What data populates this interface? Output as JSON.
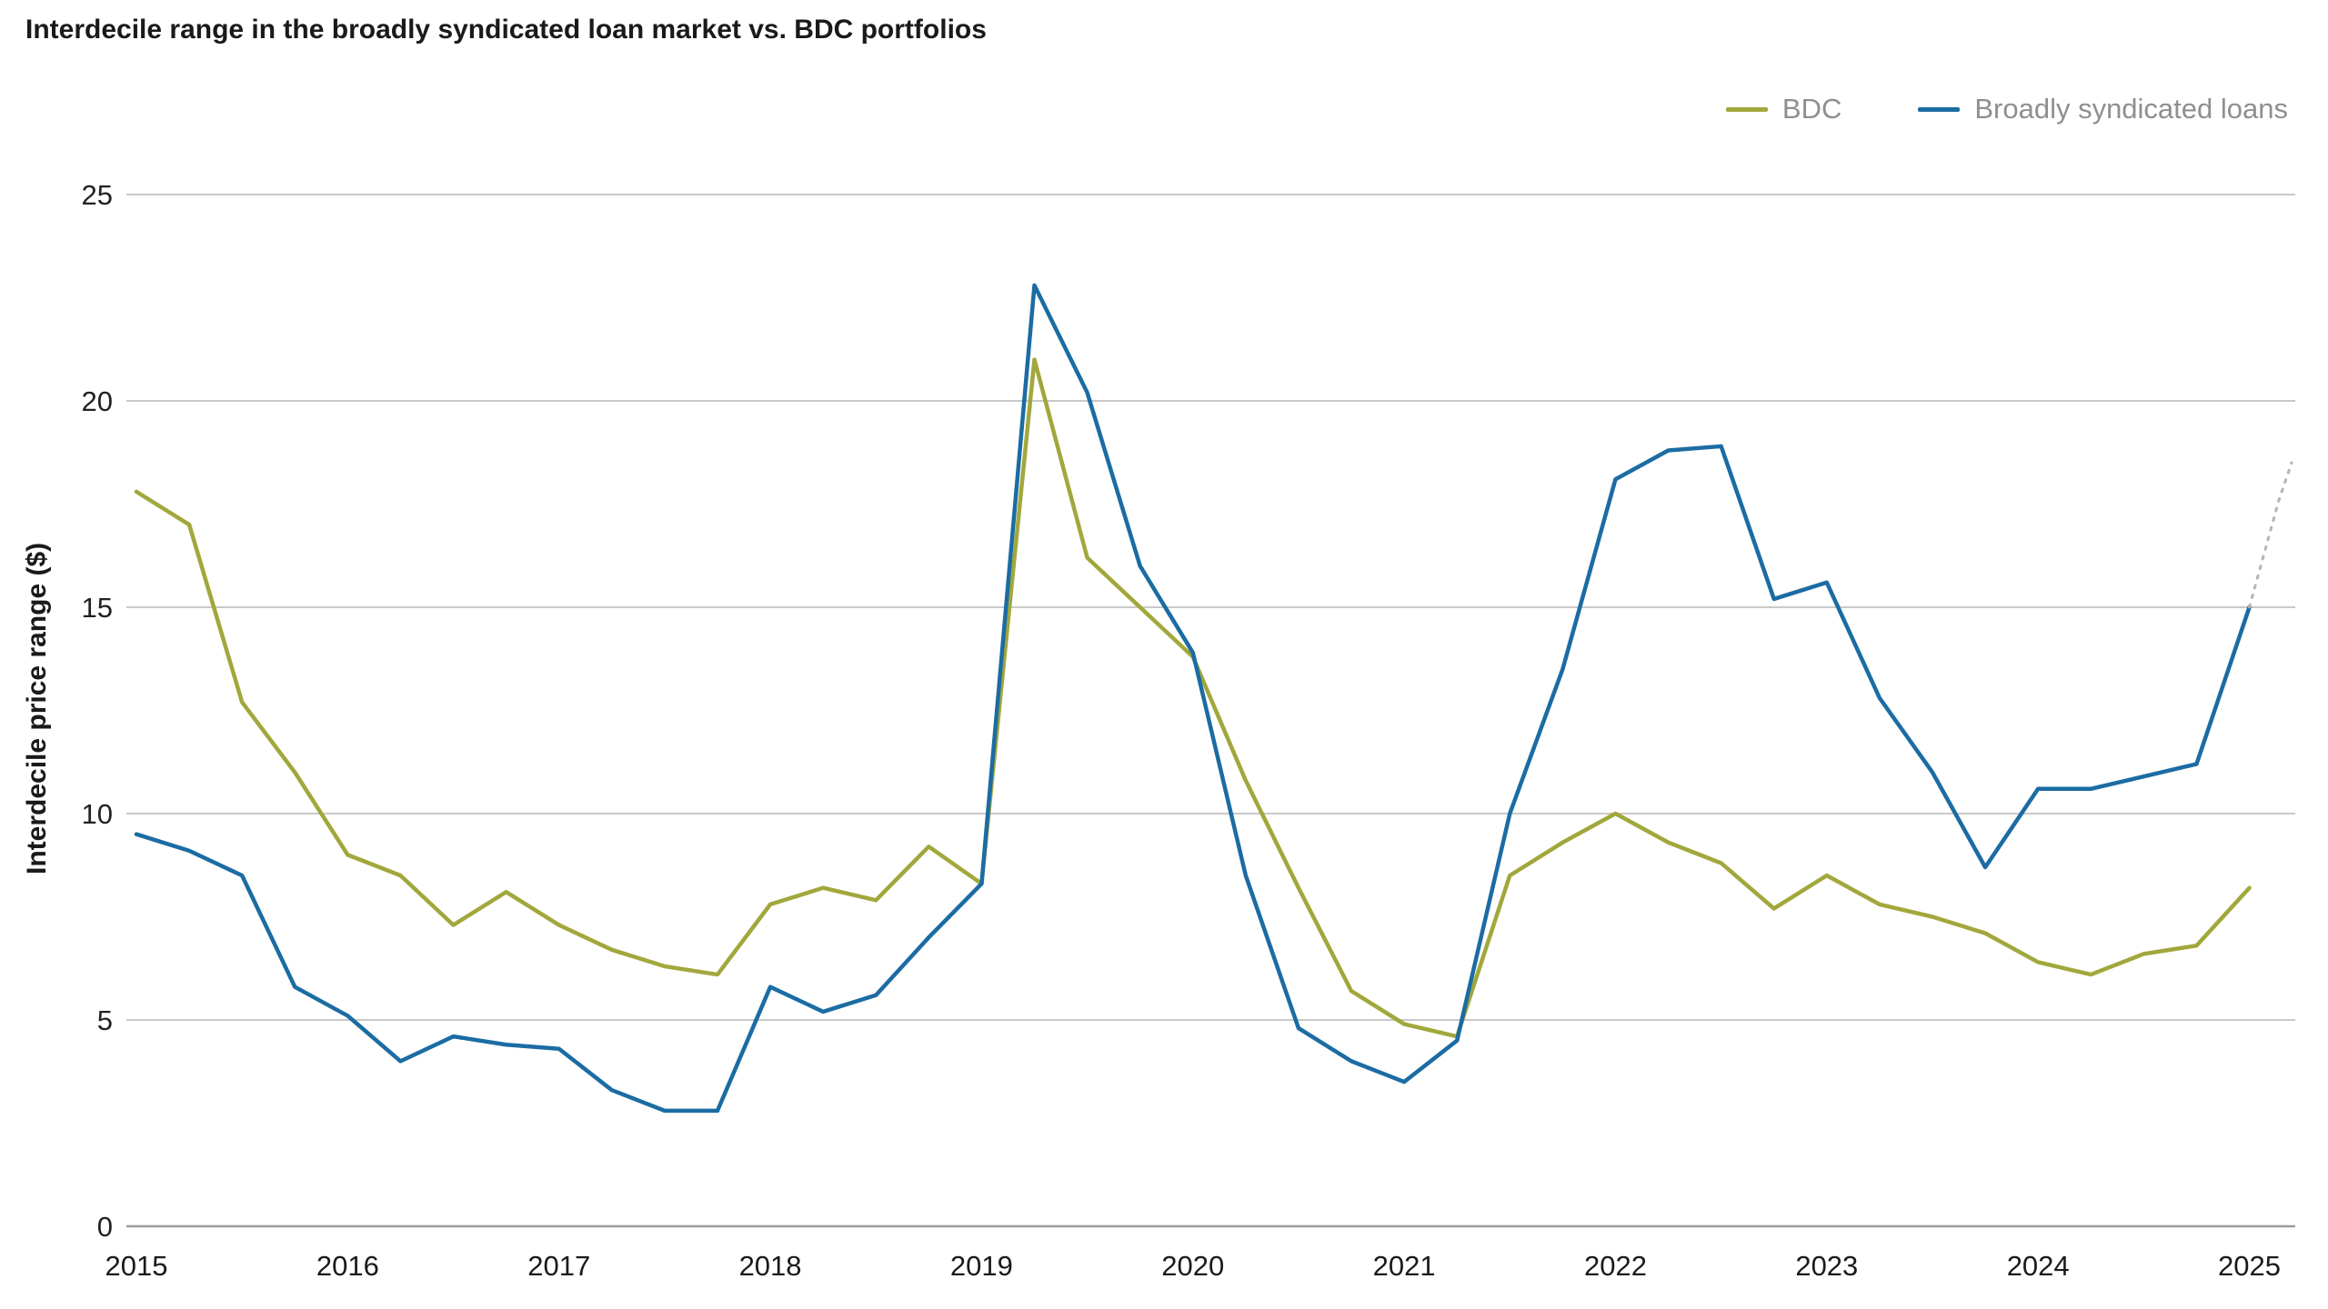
{
  "title": "Interdecile range in the broadly syndicated loan market vs. BDC portfolios",
  "legend": {
    "items": [
      {
        "label": "BDC",
        "color": "#a2a73c"
      },
      {
        "label": "Broadly syndicated loans",
        "color": "#1b6ca3"
      }
    ]
  },
  "colors": {
    "background": "#ffffff",
    "gridline": "#c9c9c9",
    "axis_zero_line": "#9b9b9b",
    "bdc_line": "#a2a73c",
    "bsl_line": "#1b6ca3",
    "projection_dash": "#b4b4b4",
    "legend_text": "#8f8f8f",
    "title_text": "#1a1a1a"
  },
  "chart_data": {
    "type": "line",
    "title": "Interdecile range in the broadly syndicated loan market vs. BDC portfolios",
    "xlabel": "",
    "ylabel": "Interdecile price range ($)",
    "xlim": [
      2015,
      2025.2
    ],
    "ylim": [
      0,
      25
    ],
    "yticks": [
      0,
      5,
      10,
      15,
      20,
      25
    ],
    "xticks": [
      2015,
      2016,
      2017,
      2018,
      2019,
      2020,
      2021,
      2022,
      2023,
      2024,
      2025
    ],
    "grid": "horizontal",
    "legend_position": "top-right",
    "x": [
      2015.0,
      2015.25,
      2015.5,
      2015.75,
      2016.0,
      2016.25,
      2016.5,
      2016.75,
      2017.0,
      2017.25,
      2017.5,
      2017.75,
      2018.0,
      2018.25,
      2018.5,
      2018.75,
      2019.0,
      2019.25,
      2019.5,
      2019.75,
      2020.0,
      2020.25,
      2020.5,
      2020.75,
      2021.0,
      2021.25,
      2021.5,
      2021.75,
      2022.0,
      2022.25,
      2022.5,
      2022.75,
      2023.0,
      2023.25,
      2023.5,
      2023.75,
      2024.0,
      2024.25,
      2024.5,
      2024.75,
      2025.0
    ],
    "series": [
      {
        "name": "BDC",
        "color": "#a2a73c",
        "values": [
          17.8,
          17.0,
          12.7,
          11.0,
          9.0,
          8.5,
          7.3,
          8.1,
          7.3,
          6.7,
          6.3,
          6.1,
          7.8,
          8.2,
          7.9,
          9.2,
          8.3,
          21.0,
          16.2,
          15.0,
          13.8,
          10.8,
          8.2,
          5.7,
          4.9,
          4.6,
          8.5,
          9.3,
          10.0,
          9.3,
          8.8,
          7.7,
          8.5,
          7.8,
          7.5,
          7.1,
          6.4,
          6.1,
          6.6,
          6.8,
          8.2
        ]
      },
      {
        "name": "Broadly syndicated loans",
        "color": "#1b6ca3",
        "values": [
          9.5,
          9.1,
          8.5,
          5.8,
          5.1,
          4.0,
          4.6,
          4.4,
          4.3,
          3.3,
          2.8,
          2.8,
          5.8,
          5.2,
          5.6,
          7.0,
          8.3,
          22.8,
          20.2,
          16.0,
          13.9,
          8.5,
          4.8,
          4.0,
          3.5,
          4.5,
          10.0,
          13.5,
          18.1,
          18.8,
          18.9,
          15.2,
          15.6,
          12.8,
          11.0,
          8.7,
          10.6,
          10.6,
          10.9,
          11.2,
          15.0
        ]
      }
    ],
    "projection": {
      "name": "Broadly syndicated loans (latest, dashed)",
      "color": "#b4b4b4",
      "style": "dotted",
      "points": [
        [
          2025.0,
          15.0
        ],
        [
          2025.07,
          16.3
        ],
        [
          2025.14,
          17.6
        ],
        [
          2025.2,
          18.5
        ]
      ]
    }
  }
}
